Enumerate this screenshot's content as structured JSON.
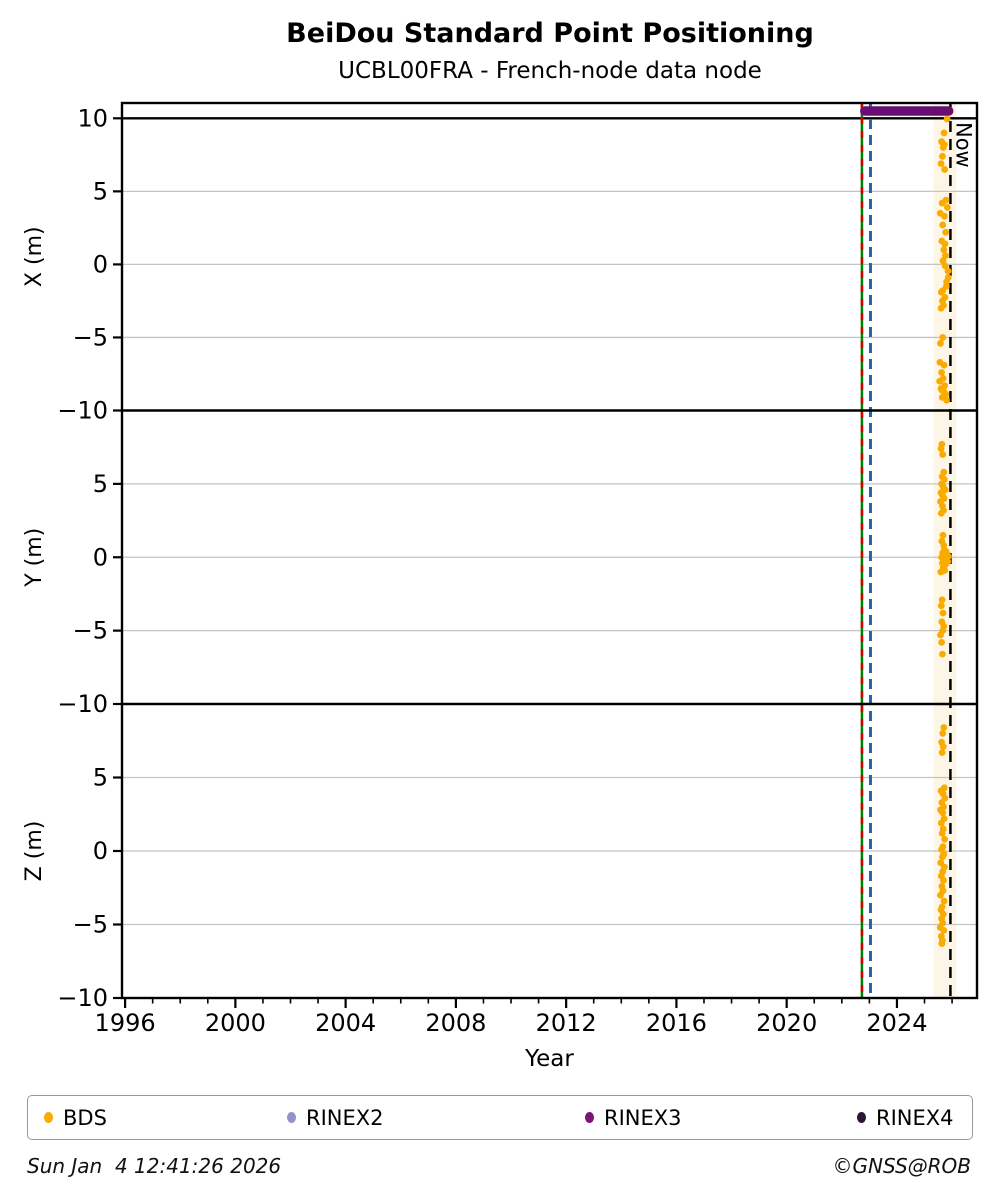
{
  "header": {
    "title": "BeiDou Standard Point Positioning",
    "subtitle": "UCBL00FRA - French-node data node"
  },
  "footer": {
    "timestamp": "Sun Jan  4 12:41:26 2026",
    "copyright": "©GNSS@ROB"
  },
  "legend": {
    "items": [
      {
        "label": "BDS",
        "color": "#F9AB00"
      },
      {
        "label": "RINEX2",
        "color": "#9393C9"
      },
      {
        "label": "RINEX3",
        "color": "#7B1378"
      },
      {
        "label": "RINEX4",
        "color": "#2E1437"
      }
    ]
  },
  "chart_data": {
    "type": "scatter",
    "title": "BeiDou Standard Point Positioning",
    "subtitle": "UCBL00FRA - French-node data node",
    "xlabel": "Year",
    "xlim": [
      1995.9,
      2026.9
    ],
    "x_major_ticks": [
      1996,
      2000,
      2004,
      2008,
      2012,
      2016,
      2020,
      2024
    ],
    "x_minor_step": 1,
    "grid": "horizontal-only",
    "series_name": "BDS",
    "series_color": "#F9AB00",
    "gridline_color": "#C4C4C4",
    "highlight_band": {
      "start": 2025.32,
      "end": 2026.16,
      "color": "#FBEFD4"
    },
    "availability_bar": {
      "label": "RINEX3",
      "start": 2022.66,
      "end": 2026.05,
      "value": 10.5,
      "color": "#6A0D73",
      "panel": 0
    },
    "vlines": [
      {
        "name": "green-event-line",
        "x": 2022.73,
        "color": "#008000",
        "style": "solid"
      },
      {
        "name": "red-event-line",
        "x": 2022.73,
        "color": "#D40000",
        "style": "dashed"
      },
      {
        "name": "blue-event-line",
        "x": 2023.04,
        "color": "#1F66B4",
        "style": "dashed"
      },
      {
        "name": "now-line",
        "x": 2025.94,
        "color": "#000000",
        "style": "dashed",
        "label": "Now"
      }
    ],
    "panels": [
      {
        "ylabel": "X (m)",
        "ylim": [
          -10,
          11.05
        ],
        "yticks": [
          10,
          5,
          0,
          -5,
          -10
        ],
        "gridlines": [
          5,
          0,
          -5
        ],
        "hline": 10,
        "points": [
          [
            2025.82,
            9.95
          ],
          [
            2025.71,
            9.0
          ],
          [
            2025.62,
            8.4
          ],
          [
            2025.72,
            8.2
          ],
          [
            2025.68,
            8.0
          ],
          [
            2025.65,
            7.4
          ],
          [
            2025.6,
            6.9
          ],
          [
            2025.73,
            6.5
          ],
          [
            2025.78,
            4.4
          ],
          [
            2025.64,
            4.2
          ],
          [
            2025.83,
            3.9
          ],
          [
            2025.57,
            3.5
          ],
          [
            2025.72,
            3.3
          ],
          [
            2025.66,
            2.7
          ],
          [
            2025.77,
            2.2
          ],
          [
            2025.63,
            1.6
          ],
          [
            2025.74,
            1.4
          ],
          [
            2025.7,
            1.0
          ],
          [
            2025.76,
            0.6
          ],
          [
            2025.67,
            0.25
          ],
          [
            2025.75,
            -0.1
          ],
          [
            2025.85,
            -0.45
          ],
          [
            2025.86,
            -0.9
          ],
          [
            2025.8,
            -1.2
          ],
          [
            2025.79,
            -1.5
          ],
          [
            2025.66,
            -1.8
          ],
          [
            2025.61,
            -1.9
          ],
          [
            2025.74,
            -2.25
          ],
          [
            2025.65,
            -2.5
          ],
          [
            2025.69,
            -2.8
          ],
          [
            2025.6,
            -3.0
          ],
          [
            2025.66,
            -5.0
          ],
          [
            2025.58,
            -5.4
          ],
          [
            2025.56,
            -6.7
          ],
          [
            2025.71,
            -6.9
          ],
          [
            2025.62,
            -7.4
          ],
          [
            2025.68,
            -7.8
          ],
          [
            2025.55,
            -8.0
          ],
          [
            2025.73,
            -8.3
          ],
          [
            2025.6,
            -8.5
          ],
          [
            2025.63,
            -8.6
          ],
          [
            2025.7,
            -8.7
          ],
          [
            2025.77,
            -8.9
          ],
          [
            2025.64,
            -9.1
          ],
          [
            2025.8,
            -9.3
          ]
        ]
      },
      {
        "ylabel": "Y (m)",
        "ylim": [
          -10,
          10
        ],
        "yticks": [
          5,
          0,
          -5,
          -10
        ],
        "gridlines": [
          5,
          0,
          -5
        ],
        "points": [
          [
            2025.63,
            7.7
          ],
          [
            2025.6,
            7.4
          ],
          [
            2025.66,
            7.0
          ],
          [
            2025.7,
            5.8
          ],
          [
            2025.64,
            5.5
          ],
          [
            2025.72,
            5.3
          ],
          [
            2025.62,
            5.0
          ],
          [
            2025.68,
            4.8
          ],
          [
            2025.75,
            4.6
          ],
          [
            2025.6,
            4.4
          ],
          [
            2025.66,
            4.2
          ],
          [
            2025.71,
            4.0
          ],
          [
            2025.58,
            3.8
          ],
          [
            2025.65,
            3.5
          ],
          [
            2025.69,
            3.2
          ],
          [
            2025.61,
            3.0
          ],
          [
            2025.67,
            1.5
          ],
          [
            2025.63,
            1.1
          ],
          [
            2025.7,
            0.8
          ],
          [
            2025.72,
            0.5
          ],
          [
            2025.78,
            0.4
          ],
          [
            2025.66,
            0.3
          ],
          [
            2025.82,
            0.2
          ],
          [
            2025.74,
            0.1
          ],
          [
            2025.86,
            0.05
          ],
          [
            2025.62,
            0.0
          ],
          [
            2025.79,
            -0.1
          ],
          [
            2025.7,
            -0.2
          ],
          [
            2025.84,
            -0.3
          ],
          [
            2025.65,
            -0.4
          ],
          [
            2025.76,
            -0.5
          ],
          [
            2025.68,
            -0.7
          ],
          [
            2025.73,
            -0.9
          ],
          [
            2025.59,
            -1.0
          ],
          [
            2025.64,
            -2.9
          ],
          [
            2025.61,
            -3.3
          ],
          [
            2025.67,
            -3.8
          ],
          [
            2025.63,
            -4.4
          ],
          [
            2025.7,
            -4.7
          ],
          [
            2025.66,
            -5.0
          ],
          [
            2025.58,
            -5.3
          ],
          [
            2025.62,
            -5.8
          ],
          [
            2025.65,
            -6.6
          ]
        ]
      },
      {
        "ylabel": "Z (m)",
        "ylim": [
          -10,
          10
        ],
        "yticks": [
          5,
          0,
          -5,
          -10
        ],
        "gridlines": [
          5,
          0,
          -5
        ],
        "points": [
          [
            2025.7,
            8.4
          ],
          [
            2025.66,
            8.0
          ],
          [
            2025.62,
            7.4
          ],
          [
            2025.68,
            7.1
          ],
          [
            2025.64,
            6.7
          ],
          [
            2025.72,
            4.3
          ],
          [
            2025.6,
            4.1
          ],
          [
            2025.67,
            3.9
          ],
          [
            2025.74,
            3.6
          ],
          [
            2025.63,
            3.3
          ],
          [
            2025.69,
            3.0
          ],
          [
            2025.58,
            2.8
          ],
          [
            2025.66,
            2.6
          ],
          [
            2025.71,
            2.2
          ],
          [
            2025.61,
            1.9
          ],
          [
            2025.68,
            1.5
          ],
          [
            2025.64,
            1.2
          ],
          [
            2025.73,
            0.8
          ],
          [
            2025.67,
            0.3
          ],
          [
            2025.62,
            0.1
          ],
          [
            2025.7,
            -0.2
          ],
          [
            2025.65,
            -0.4
          ],
          [
            2025.59,
            -0.8
          ],
          [
            2025.72,
            -1.1
          ],
          [
            2025.66,
            -1.4
          ],
          [
            2025.61,
            -1.7
          ],
          [
            2025.69,
            -2.0
          ],
          [
            2025.63,
            -2.4
          ],
          [
            2025.67,
            -2.7
          ],
          [
            2025.58,
            -3.0
          ],
          [
            2025.71,
            -3.4
          ],
          [
            2025.64,
            -3.8
          ],
          [
            2025.6,
            -4.0
          ],
          [
            2025.68,
            -4.3
          ],
          [
            2025.62,
            -4.6
          ],
          [
            2025.66,
            -4.9
          ],
          [
            2025.57,
            -5.2
          ],
          [
            2025.7,
            -5.4
          ],
          [
            2025.61,
            -5.8
          ],
          [
            2025.65,
            -6.1
          ],
          [
            2025.63,
            -6.3
          ]
        ]
      }
    ]
  }
}
